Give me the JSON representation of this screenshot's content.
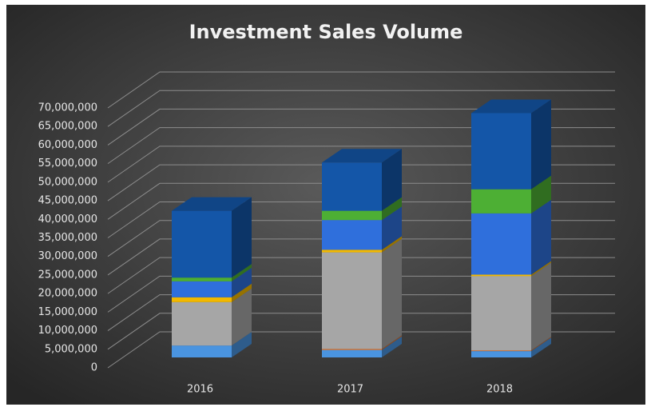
{
  "chart_data": {
    "type": "bar3d_stacked",
    "title": "Investment Sales Volume",
    "categories": [
      "2016",
      "2017",
      "2018"
    ],
    "series": [
      {
        "color": "#4a94e0",
        "values": [
          3200000,
          2000000,
          1700000
        ]
      },
      {
        "color": "#e07b39",
        "values": [
          0,
          300000,
          200000
        ]
      },
      {
        "color": "#a6a6a6",
        "values": [
          11700000,
          26000000,
          20000000
        ]
      },
      {
        "color": "#f2b800",
        "values": [
          1300000,
          700000,
          400000
        ]
      },
      {
        "color": "#2f6fdc",
        "values": [
          4300000,
          8000000,
          16500000
        ]
      },
      {
        "color": "#4daf34",
        "values": [
          1000000,
          2500000,
          6500000
        ]
      },
      {
        "color": "#1456a8",
        "values": [
          18000000,
          13000000,
          20500000
        ]
      }
    ],
    "ylim": [
      0,
      70000000
    ],
    "yticks": [
      0,
      {
        "value": 5000000,
        "label": "5,000,000"
      },
      {
        "value": 10000000,
        "label": "10,000,000"
      },
      {
        "value": 15000000,
        "label": "15,000,000"
      },
      {
        "value": 20000000,
        "label": "20,000,000"
      },
      {
        "value": 25000000,
        "label": "25,000,000"
      },
      {
        "value": 30000000,
        "label": "30,000,000"
      },
      {
        "value": 35000000,
        "label": "35,000,000"
      },
      {
        "value": 40000000,
        "label": "40,000,000"
      },
      {
        "value": 45000000,
        "label": "45,000,000"
      },
      {
        "value": 50000000,
        "label": "50,000,000"
      },
      {
        "value": 55000000,
        "label": "55,000,000"
      },
      {
        "value": 60000000,
        "label": "60,000,000"
      },
      {
        "value": 65000000,
        "label": "65,000,000"
      },
      {
        "value": 70000000,
        "label": "70,000,000"
      }
    ],
    "grid": true
  }
}
